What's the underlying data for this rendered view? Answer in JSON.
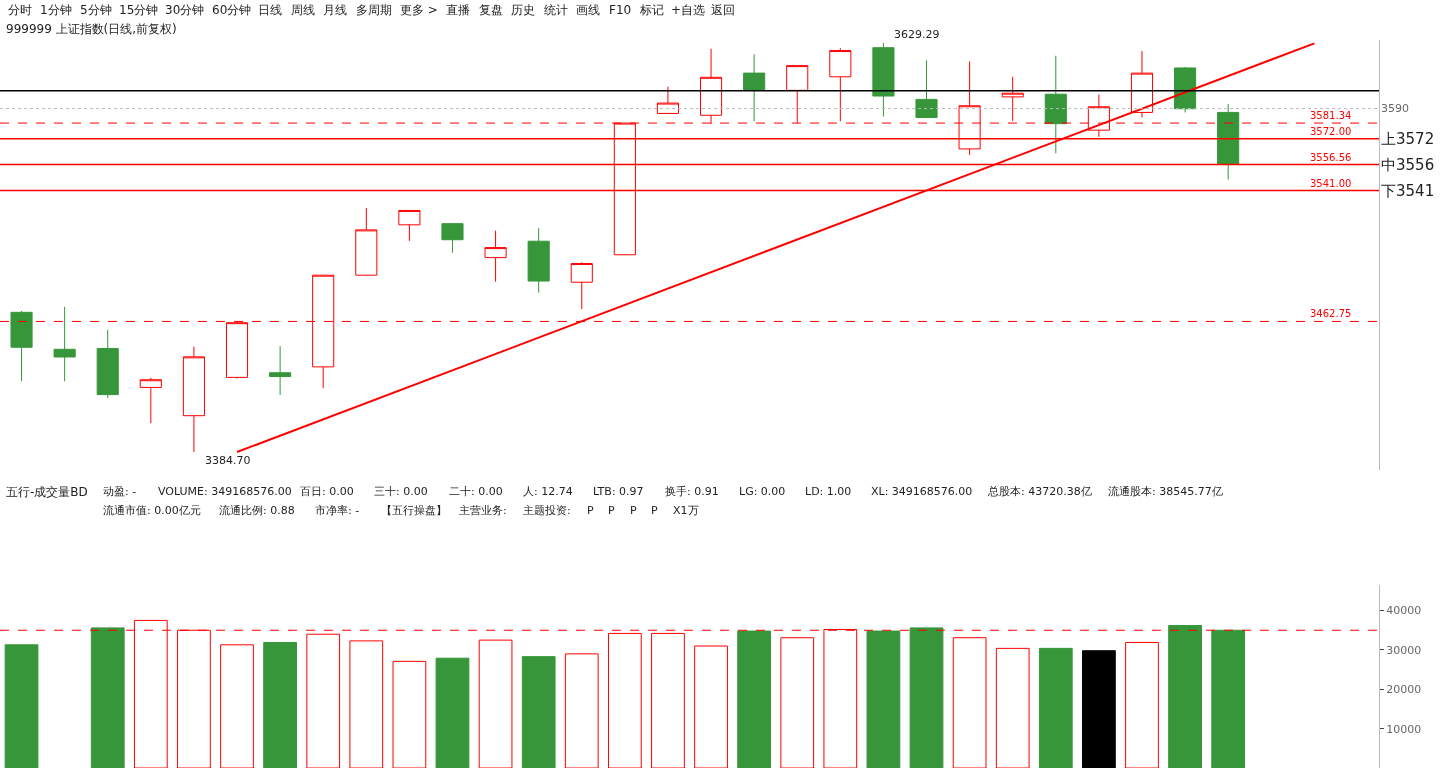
{
  "chart_data": [
    {
      "type": "candlestick",
      "title": "999999 上证指数(日线,前复权)",
      "categories": [
        null,
        null,
        null,
        null,
        null,
        null,
        null,
        null,
        null,
        null,
        null,
        null,
        null,
        null,
        null,
        null,
        null,
        null,
        null,
        null,
        null,
        null,
        null,
        null,
        null,
        null,
        null,
        null,
        null,
        null,
        null,
        null
      ],
      "ohlc": [
        [
          3468.2,
          3469.0,
          3427.0,
          3447.3
        ],
        [
          3446.1,
          3471.5,
          3427.0,
          3441.5
        ],
        [
          3446.6,
          3457.7,
          3416.9,
          3419.0
        ],
        [
          3423.3,
          3429.1,
          3402.0,
          3427.9
        ],
        [
          3406.4,
          3447.7,
          3384.7,
          3441.6
        ],
        [
          3429.3,
          3462.75,
          3428.6,
          3462.0
        ],
        [
          3432.1,
          3448.0,
          3418.8,
          3429.8
        ],
        [
          3435.6,
          3490.4,
          3422.8,
          3490.4
        ],
        [
          3490.4,
          3530.6,
          3490.4,
          3517.5
        ],
        [
          3520.5,
          3529.1,
          3510.9,
          3529.1
        ],
        [
          3521.2,
          3521.2,
          3503.9,
          3511.6
        ],
        [
          3500.9,
          3517.0,
          3486.5,
          3506.9
        ],
        [
          3510.7,
          3518.6,
          3479.9,
          3486.9
        ],
        [
          3486.2,
          3498.1,
          3470.1,
          3497.4
        ],
        [
          3502.6,
          3581.34,
          3502.6,
          3581.34
        ],
        [
          3587.1,
          3603.1,
          3587.1,
          3593.3
        ],
        [
          3586.0,
          3625.8,
          3580.7,
          3608.7
        ],
        [
          3611.2,
          3622.5,
          3582.4,
          3600.9
        ],
        [
          3600.9,
          3615.7,
          3581.3,
          3615.7
        ],
        [
          3609.0,
          3626.1,
          3582.4,
          3624.7
        ],
        [
          3626.4,
          3629.29,
          3585.2,
          3597.5
        ],
        [
          3595.5,
          3618.8,
          3584.7,
          3584.7
        ],
        [
          3565.9,
          3618.2,
          3562.3,
          3591.7
        ],
        [
          3597.0,
          3609.0,
          3582.6,
          3599.2
        ],
        [
          3598.6,
          3621.6,
          3563.3,
          3581.0
        ],
        [
          3577.1,
          3598.4,
          3573.1,
          3591.1
        ],
        [
          3587.7,
          3624.4,
          3584.7,
          3611.2
        ],
        [
          3614.3,
          3614.9,
          3587.7,
          3589.9
        ],
        [
          3587.7,
          3592.7,
          3547.6,
          3556.56
        ],
        null,
        null,
        null
      ],
      "series": [
        {
          "type": "line",
          "values": [
            null,
            null,
            null,
            null,
            null,
            3384.7,
            null,
            null,
            null,
            null,
            null,
            null,
            null,
            null,
            null,
            null,
            null,
            null,
            null,
            null,
            null,
            null,
            null,
            null,
            null,
            null,
            null,
            null,
            null,
            null,
            3629.0,
            null
          ],
          "color": "#ff0000"
        }
      ],
      "tick_labels": false,
      "ref_lines": [
        {
          "axis": "y",
          "value": 3590,
          "color": "#bbbbbb",
          "line_style": "dotted"
        },
        {
          "axis": "y",
          "value": 3572.0,
          "label": "3572.00",
          "color": "#ff0000",
          "line_style": "solid"
        },
        {
          "axis": "y",
          "value": 3556.56,
          "label": "3556.56",
          "color": "#ff0000",
          "line_style": "solid"
        },
        {
          "axis": "y",
          "value": 3541.0,
          "label": "3541.00",
          "color": "#ff0000",
          "line_style": "solid"
        },
        {
          "axis": "y",
          "value": 3600.7,
          "color": "#000000",
          "line_style": "solid"
        },
        {
          "axis": "y",
          "value": 3581.34,
          "label": "3581.34",
          "color": "#ff0000",
          "line_style": "dashed"
        },
        {
          "axis": "y",
          "value": 3462.75,
          "label": "3462.75",
          "color": "#ff0000",
          "line_style": "dashed"
        }
      ],
      "annotations": [
        "分时",
        "1分钟",
        "5分钟",
        "15分钟",
        "30分钟",
        "60分钟",
        "日线",
        "周线",
        "月线",
        "多周期",
        "更多 >",
        "直播",
        "复盘",
        "历史",
        "统计",
        "画线",
        "F10",
        "标记",
        "+自选",
        "返回",
        "3629.29",
        "3384.70",
        "3590",
        "上3572",
        "中3556",
        "下3541"
      ]
    },
    {
      "type": "bar",
      "title": "五行-成交量BD",
      "categories": [
        null,
        null,
        null,
        null,
        null,
        null,
        null,
        null,
        null,
        null,
        null,
        null,
        null,
        null,
        null,
        null,
        null,
        null,
        null,
        null,
        null,
        null,
        null,
        null,
        null,
        null,
        null,
        null,
        null,
        null,
        null,
        null
      ],
      "values": [
        31300,
        null,
        35600,
        37500,
        35000,
        31300,
        31900,
        34000,
        32300,
        27100,
        27900,
        32500,
        28300,
        29000,
        34200,
        34200,
        31000,
        34800,
        33100,
        35200,
        34800,
        35600,
        33100,
        30400,
        30400,
        29800,
        31900,
        36200,
        35000,
        null,
        null,
        null
      ],
      "colors": [
        "#37963a",
        "#37963a",
        "#37963a",
        "#ff0000",
        "#ff0000",
        "#ff0000",
        "#37963a",
        "#ff0000",
        "#ff0000",
        "#ff0000",
        "#37963a",
        "#ff0000",
        "#37963a",
        "#ff0000",
        "#ff0000",
        "#ff0000",
        "#ff0000",
        "#37963a",
        "#ff0000",
        "#ff0000",
        "#37963a",
        "#37963a",
        "#ff0000",
        "#ff0000",
        "#37963a",
        "#000000",
        "#ff0000",
        "#37963a",
        "#37963a",
        null,
        null,
        null
      ],
      "ylim": [
        0,
        46500
      ],
      "yticks": [
        10000,
        20000,
        30000,
        40000
      ],
      "tick_labels": "y",
      "ref_lines": [
        {
          "axis": "y",
          "value": 35000,
          "color": "#ff0000",
          "line_style": "dashed"
        }
      ],
      "annotations": [
        "动盈: -",
        "VOLUME: 349168576.00",
        "百日: 0.00",
        "三十: 0.00",
        "二十: 0.00",
        "人: 12.74",
        "LTB: 0.97",
        "换手: 0.91",
        "LG: 0.00",
        "LD: 1.00",
        "XL: 349168576.00",
        "总股本: 43720.38亿",
        "流通股本: 38545.77亿",
        "流通市值: 0.00亿元",
        "流通比例: 0.88",
        "市净率: -",
        "【五行操盘】",
        "主营业务:",
        "主题投资:",
        "P",
        "P",
        "P",
        "P",
        "X1万"
      ]
    }
  ]
}
